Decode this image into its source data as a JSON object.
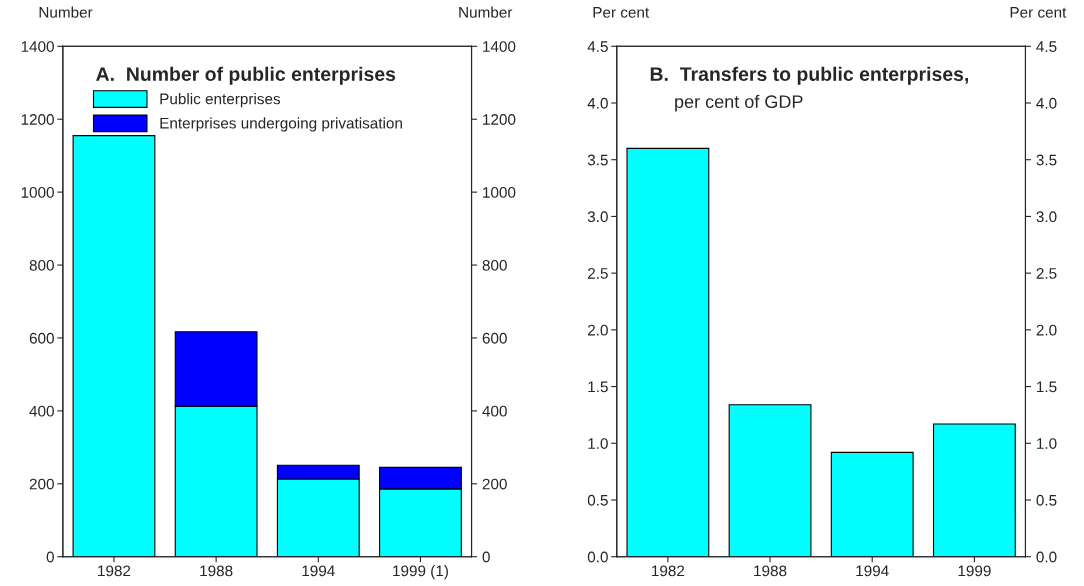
{
  "chart_data": [
    {
      "type": "bar",
      "title": "A.  Number of public enterprises",
      "ylabel": "Number",
      "y2label": "Number",
      "categories": [
        "1982",
        "1988",
        "1994",
        "1999 (1)"
      ],
      "stacked": true,
      "series": [
        {
          "name": "Public enterprises",
          "color": "#00ffff",
          "values": [
            1155,
            413,
            213,
            186
          ]
        },
        {
          "name": "Enterprises undergoing privatisation",
          "color": "#0000ff",
          "values": [
            null,
            204,
            38,
            59
          ]
        }
      ],
      "ylim": [
        0,
        1400
      ],
      "yticks": [
        0,
        200,
        400,
        600,
        800,
        1000,
        1200,
        1400
      ],
      "y2lim": [
        0,
        1400
      ],
      "y2ticks": [
        0,
        200,
        400,
        600,
        800,
        1000,
        1200,
        1400
      ],
      "legend": "top left",
      "grid": false
    },
    {
      "type": "bar",
      "title": "B.  Transfers to public enterprises,",
      "subtitle": "per cent of GDP",
      "ylabel": "Per cent",
      "y2label": "Per cent",
      "categories": [
        "1982",
        "1988",
        "1994",
        "1999"
      ],
      "series": [
        {
          "color": "#00ffff",
          "values": [
            3.6,
            1.34,
            0.92,
            1.17
          ]
        }
      ],
      "ylim": [
        0,
        4.5
      ],
      "yticks": [
        {
          "value": 0,
          "label": "0.0"
        },
        0.5,
        {
          "value": 1,
          "label": "1.0"
        },
        1.5,
        {
          "value": 2,
          "label": "2.0"
        },
        2.5,
        {
          "value": 3,
          "label": "3.0"
        },
        3.5,
        {
          "value": 4,
          "label": "4.0"
        },
        4.5
      ],
      "y2lim": [
        0,
        4.5
      ],
      "y2ticks": [
        {
          "value": 0,
          "label": "0.0"
        },
        0.5,
        {
          "value": 1,
          "label": "1.0"
        },
        1.5,
        {
          "value": 2,
          "label": "2.0"
        },
        2.5,
        {
          "value": 3,
          "label": "3.0"
        },
        3.5,
        {
          "value": 4,
          "label": "4.0"
        },
        4.5
      ],
      "grid": false
    }
  ]
}
